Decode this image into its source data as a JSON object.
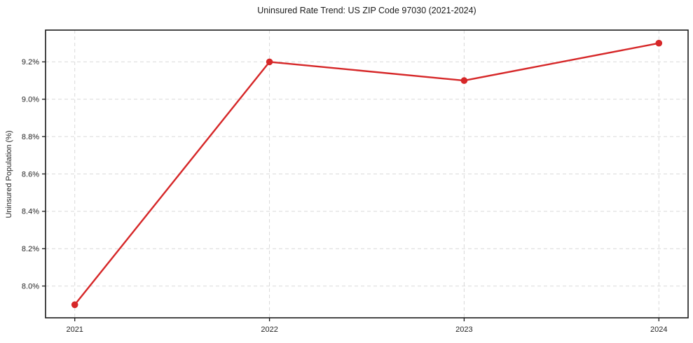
{
  "chart_data": {
    "type": "line",
    "title": "Uninsured Rate Trend: US ZIP Code 97030 (2021-2024)",
    "xlabel": "",
    "ylabel": "Uninsured Population (%)",
    "x": [
      2021,
      2022,
      2023,
      2024
    ],
    "values": [
      7.9,
      9.2,
      9.1,
      9.3
    ],
    "xticks": [
      "2021",
      "2022",
      "2023",
      "2024"
    ],
    "yticks": [
      "8.0%",
      "8.2%",
      "8.4%",
      "8.6%",
      "8.8%",
      "9.0%",
      "9.2%"
    ],
    "ytick_values": [
      8.0,
      8.2,
      8.4,
      8.6,
      8.8,
      9.0,
      9.2
    ],
    "xlim": [
      2020.85,
      2024.15
    ],
    "ylim": [
      7.83,
      9.37
    ],
    "grid": true,
    "grid_style": "dashed",
    "legend_position": "none",
    "line_color": "#d62728",
    "marker": "circle",
    "grid_color": "#d9d9d9",
    "axis_color": "#1a1a1a",
    "text_color": "#262626",
    "background_color": "#ffffff"
  }
}
